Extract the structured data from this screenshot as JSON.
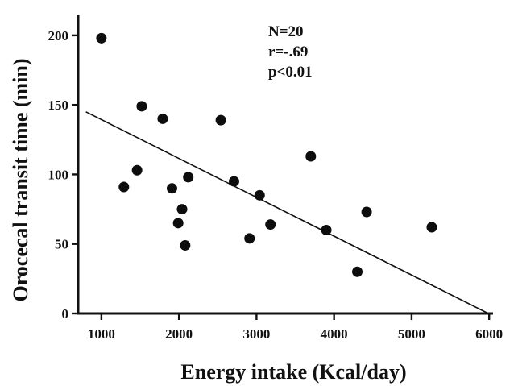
{
  "chart_data": {
    "type": "scatter",
    "xlabel": "Energy intake (Kcal/day)",
    "ylabel": "Orocecal transit time (min)",
    "xlim": [
      700,
      6050
    ],
    "ylim": [
      0,
      215
    ],
    "xticks": [
      1000,
      2000,
      3000,
      4000,
      5000,
      6000
    ],
    "yticks": [
      0,
      50,
      100,
      150,
      200
    ],
    "xtick_labels": [
      "1000",
      "2000",
      "3000",
      "4000",
      "5000",
      "6000"
    ],
    "ytick_labels": [
      "0",
      "50",
      "100",
      "150",
      "200"
    ],
    "annotations": [
      "N=20",
      "r=-.69",
      "p<0.01"
    ],
    "grid": false,
    "points": [
      {
        "x": 1000,
        "y": 198
      },
      {
        "x": 1290,
        "y": 91
      },
      {
        "x": 1460,
        "y": 103
      },
      {
        "x": 1520,
        "y": 149
      },
      {
        "x": 1790,
        "y": 140
      },
      {
        "x": 1910,
        "y": 90
      },
      {
        "x": 1990,
        "y": 65
      },
      {
        "x": 2040,
        "y": 75
      },
      {
        "x": 2080,
        "y": 49
      },
      {
        "x": 2120,
        "y": 98
      },
      {
        "x": 2540,
        "y": 139
      },
      {
        "x": 2710,
        "y": 95
      },
      {
        "x": 2910,
        "y": 54
      },
      {
        "x": 3040,
        "y": 85
      },
      {
        "x": 3180,
        "y": 64
      },
      {
        "x": 3700,
        "y": 113
      },
      {
        "x": 3900,
        "y": 60
      },
      {
        "x": 4300,
        "y": 30
      },
      {
        "x": 4420,
        "y": 73
      },
      {
        "x": 5260,
        "y": 62
      }
    ],
    "trendline": {
      "x": [
        800,
        5990
      ],
      "y": [
        145,
        0
      ]
    }
  }
}
